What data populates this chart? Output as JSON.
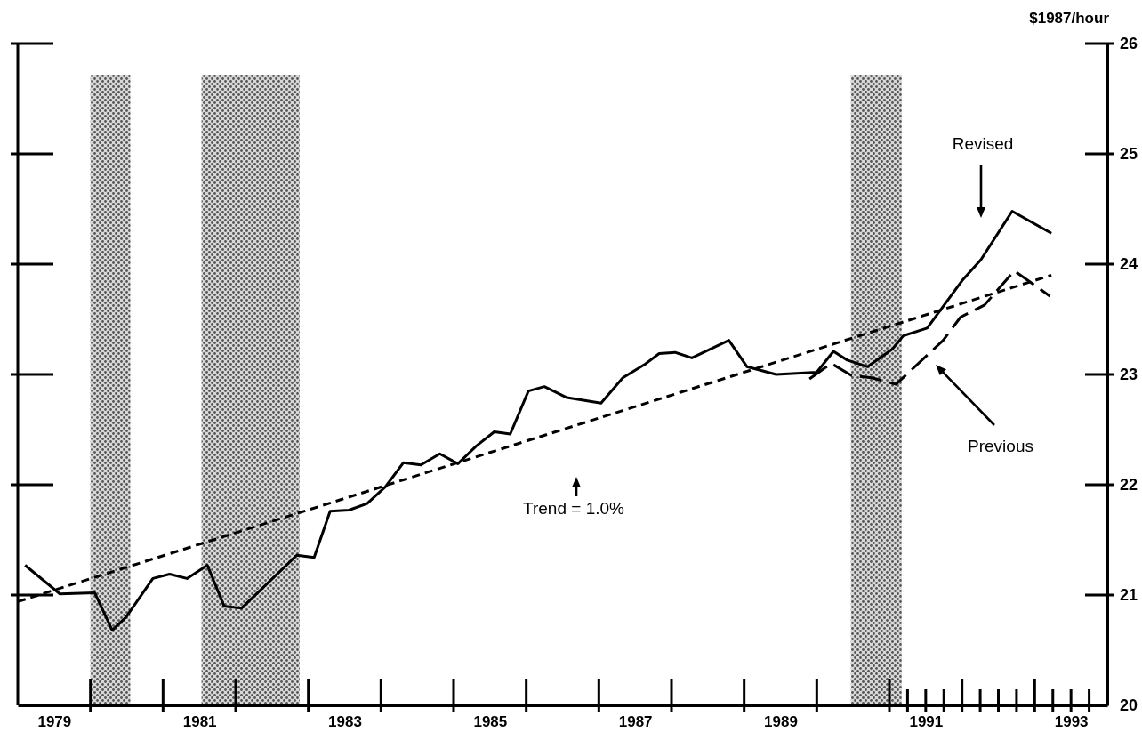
{
  "chart_data": {
    "type": "line",
    "ylabel": "$1987/hour",
    "xlim": [
      1979,
      1994
    ],
    "xticks": [
      {
        "value": 1979.5,
        "label": "1979"
      },
      {
        "value": 1981.5,
        "label": "1981"
      },
      {
        "value": 1983.5,
        "label": "1983"
      },
      {
        "value": 1985.5,
        "label": "1985"
      },
      {
        "value": 1987.5,
        "label": "1987"
      },
      {
        "value": 1989.5,
        "label": "1989"
      },
      {
        "value": 1991.5,
        "label": "1991"
      },
      {
        "value": 1993.5,
        "label": "1993"
      }
    ],
    "annotations": [
      "Revised",
      "Previous",
      "Trend = 1.0%"
    ],
    "ylim": [
      20,
      26
    ],
    "yticks": [
      20,
      21,
      22,
      23,
      24,
      25,
      26
    ],
    "grid": false,
    "marker": "none",
    "bands": [
      {
        "axis": "x",
        "from": 1980.0,
        "to": 1980.55,
        "color": "#555555"
      },
      {
        "axis": "x",
        "from": 1981.53,
        "to": 1982.88,
        "color": "#555555"
      },
      {
        "axis": "x",
        "from": 1990.47,
        "to": 1991.17,
        "color": "#555555"
      }
    ],
    "series": [
      {
        "color": "#000000",
        "line_style": "solid",
        "x": [
          1979.1,
          1979.58,
          1980.06,
          1980.3,
          1980.49,
          1980.86,
          1981.09,
          1981.33,
          1981.61,
          1981.84,
          1982.08,
          1982.84,
          1983.08,
          1983.3,
          1983.56,
          1983.81,
          1984.06,
          1984.31,
          1984.55,
          1984.81,
          1985.06,
          1985.31,
          1985.56,
          1985.78,
          1986.03,
          1986.25,
          1986.56,
          1987.03,
          1987.33,
          1987.63,
          1987.83,
          1988.05,
          1988.28,
          1988.79,
          1989.04,
          1989.44,
          1990.0,
          1990.23,
          1990.42,
          1990.7,
          1991.04,
          1991.19,
          1991.52,
          1992.0,
          1992.26,
          1992.69,
          1993.23
        ],
        "values": [
          21.27,
          21.01,
          21.02,
          20.68,
          20.8,
          21.15,
          21.19,
          21.15,
          21.27,
          20.9,
          20.88,
          21.36,
          21.34,
          21.76,
          21.77,
          21.83,
          21.98,
          22.2,
          22.18,
          22.28,
          22.19,
          22.35,
          22.48,
          22.46,
          22.85,
          22.89,
          22.79,
          22.74,
          22.97,
          23.09,
          23.19,
          23.2,
          23.15,
          23.31,
          23.07,
          23.0,
          23.02,
          23.21,
          23.13,
          23.07,
          23.23,
          23.35,
          23.42,
          23.85,
          24.04,
          24.48,
          24.28
        ]
      },
      {
        "color": "#000000",
        "line_style": "dashed",
        "x": [
          1989.9,
          1990.2,
          1990.48,
          1990.76,
          1991.09,
          1991.74,
          1991.98,
          1992.31,
          1992.72,
          1993.21
        ],
        "values": [
          22.96,
          23.1,
          22.99,
          22.97,
          22.91,
          23.31,
          23.52,
          23.63,
          23.94,
          23.71
        ]
      },
      {
        "type": "line",
        "color": "#000000",
        "line_style": "dashed",
        "x": [
          1979.0,
          1993.23
        ],
        "values": [
          20.94,
          23.9
        ]
      }
    ]
  }
}
